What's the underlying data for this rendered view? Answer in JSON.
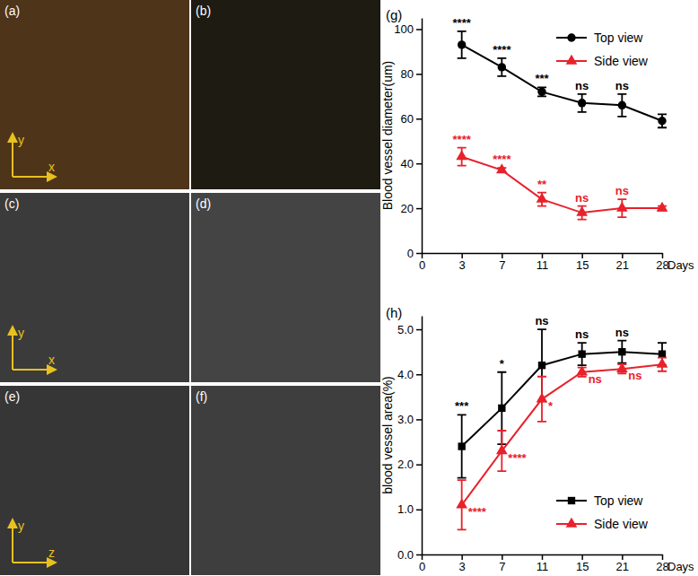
{
  "image_panels": [
    {
      "label": "(a)",
      "horizontal": "x",
      "vertical": "y"
    },
    {
      "label": "(b)"
    },
    {
      "label": "(c)",
      "horizontal": "x",
      "vertical": "y"
    },
    {
      "label": "(d)"
    },
    {
      "label": "(e)",
      "horizontal": "z",
      "vertical": "y"
    },
    {
      "label": "(f)"
    }
  ],
  "chart_data": [
    {
      "type": "line",
      "title": "(g)",
      "y_label": "Blood vessel diameter(um)",
      "x_label": "Days",
      "categories": [
        "0",
        "3",
        "7",
        "11",
        "15",
        "21",
        "28"
      ],
      "ylim": [
        0,
        105
      ],
      "yticks": [
        0,
        20,
        40,
        60,
        80,
        100
      ],
      "legend": "upper-right",
      "series": [
        {
          "name": "Top view",
          "color": "#000000",
          "marker": "circle",
          "values": [
            null,
            93,
            83,
            72,
            67,
            66,
            59
          ],
          "errors": [
            null,
            6,
            4,
            2,
            4,
            5,
            3
          ],
          "annotations": [
            null,
            "****",
            "****",
            "***",
            "ns",
            "ns",
            null
          ]
        },
        {
          "name": "Side view",
          "color": "#e8212b",
          "marker": "triangle",
          "values": [
            null,
            43,
            37,
            24,
            18,
            20,
            20
          ],
          "errors": [
            null,
            4,
            1,
            3,
            3,
            4,
            1
          ],
          "annotations": [
            null,
            "****",
            "****",
            "**",
            "ns",
            "ns",
            null
          ]
        }
      ]
    },
    {
      "type": "line",
      "title": "(h)",
      "y_label": "blood vessel area(%)",
      "x_label": "Days",
      "categories": [
        "0",
        "3",
        "7",
        "11",
        "15",
        "21",
        "28"
      ],
      "ylim": [
        0,
        5.3
      ],
      "yticks": [
        {
          "value": 0,
          "label": "0.0"
        },
        {
          "value": 1,
          "label": "1.0"
        },
        {
          "value": 2,
          "label": "2.0"
        },
        {
          "value": 3,
          "label": "3.0"
        },
        {
          "value": 4,
          "label": "4.0"
        },
        {
          "value": 5,
          "label": "5.0"
        }
      ],
      "legend": "lower-right",
      "series": [
        {
          "name": "Top view",
          "color": "#000000",
          "marker": "square",
          "values": [
            null,
            2.4,
            3.25,
            4.2,
            4.45,
            4.5,
            4.45
          ],
          "errors": [
            null,
            0.7,
            0.8,
            0.8,
            0.25,
            0.25,
            0.25
          ],
          "annotations": [
            null,
            "***",
            "*",
            "ns",
            "ns",
            "ns",
            null
          ]
        },
        {
          "name": "Side view",
          "color": "#e8212b",
          "marker": "triangle",
          "values": [
            null,
            1.1,
            2.3,
            3.45,
            4.05,
            4.12,
            4.22
          ],
          "errors": [
            null,
            0.55,
            0.45,
            0.5,
            0.1,
            0.1,
            0.15
          ],
          "annotations": [
            null,
            "****",
            "****",
            "*",
            "ns",
            "ns",
            null
          ]
        }
      ]
    }
  ]
}
